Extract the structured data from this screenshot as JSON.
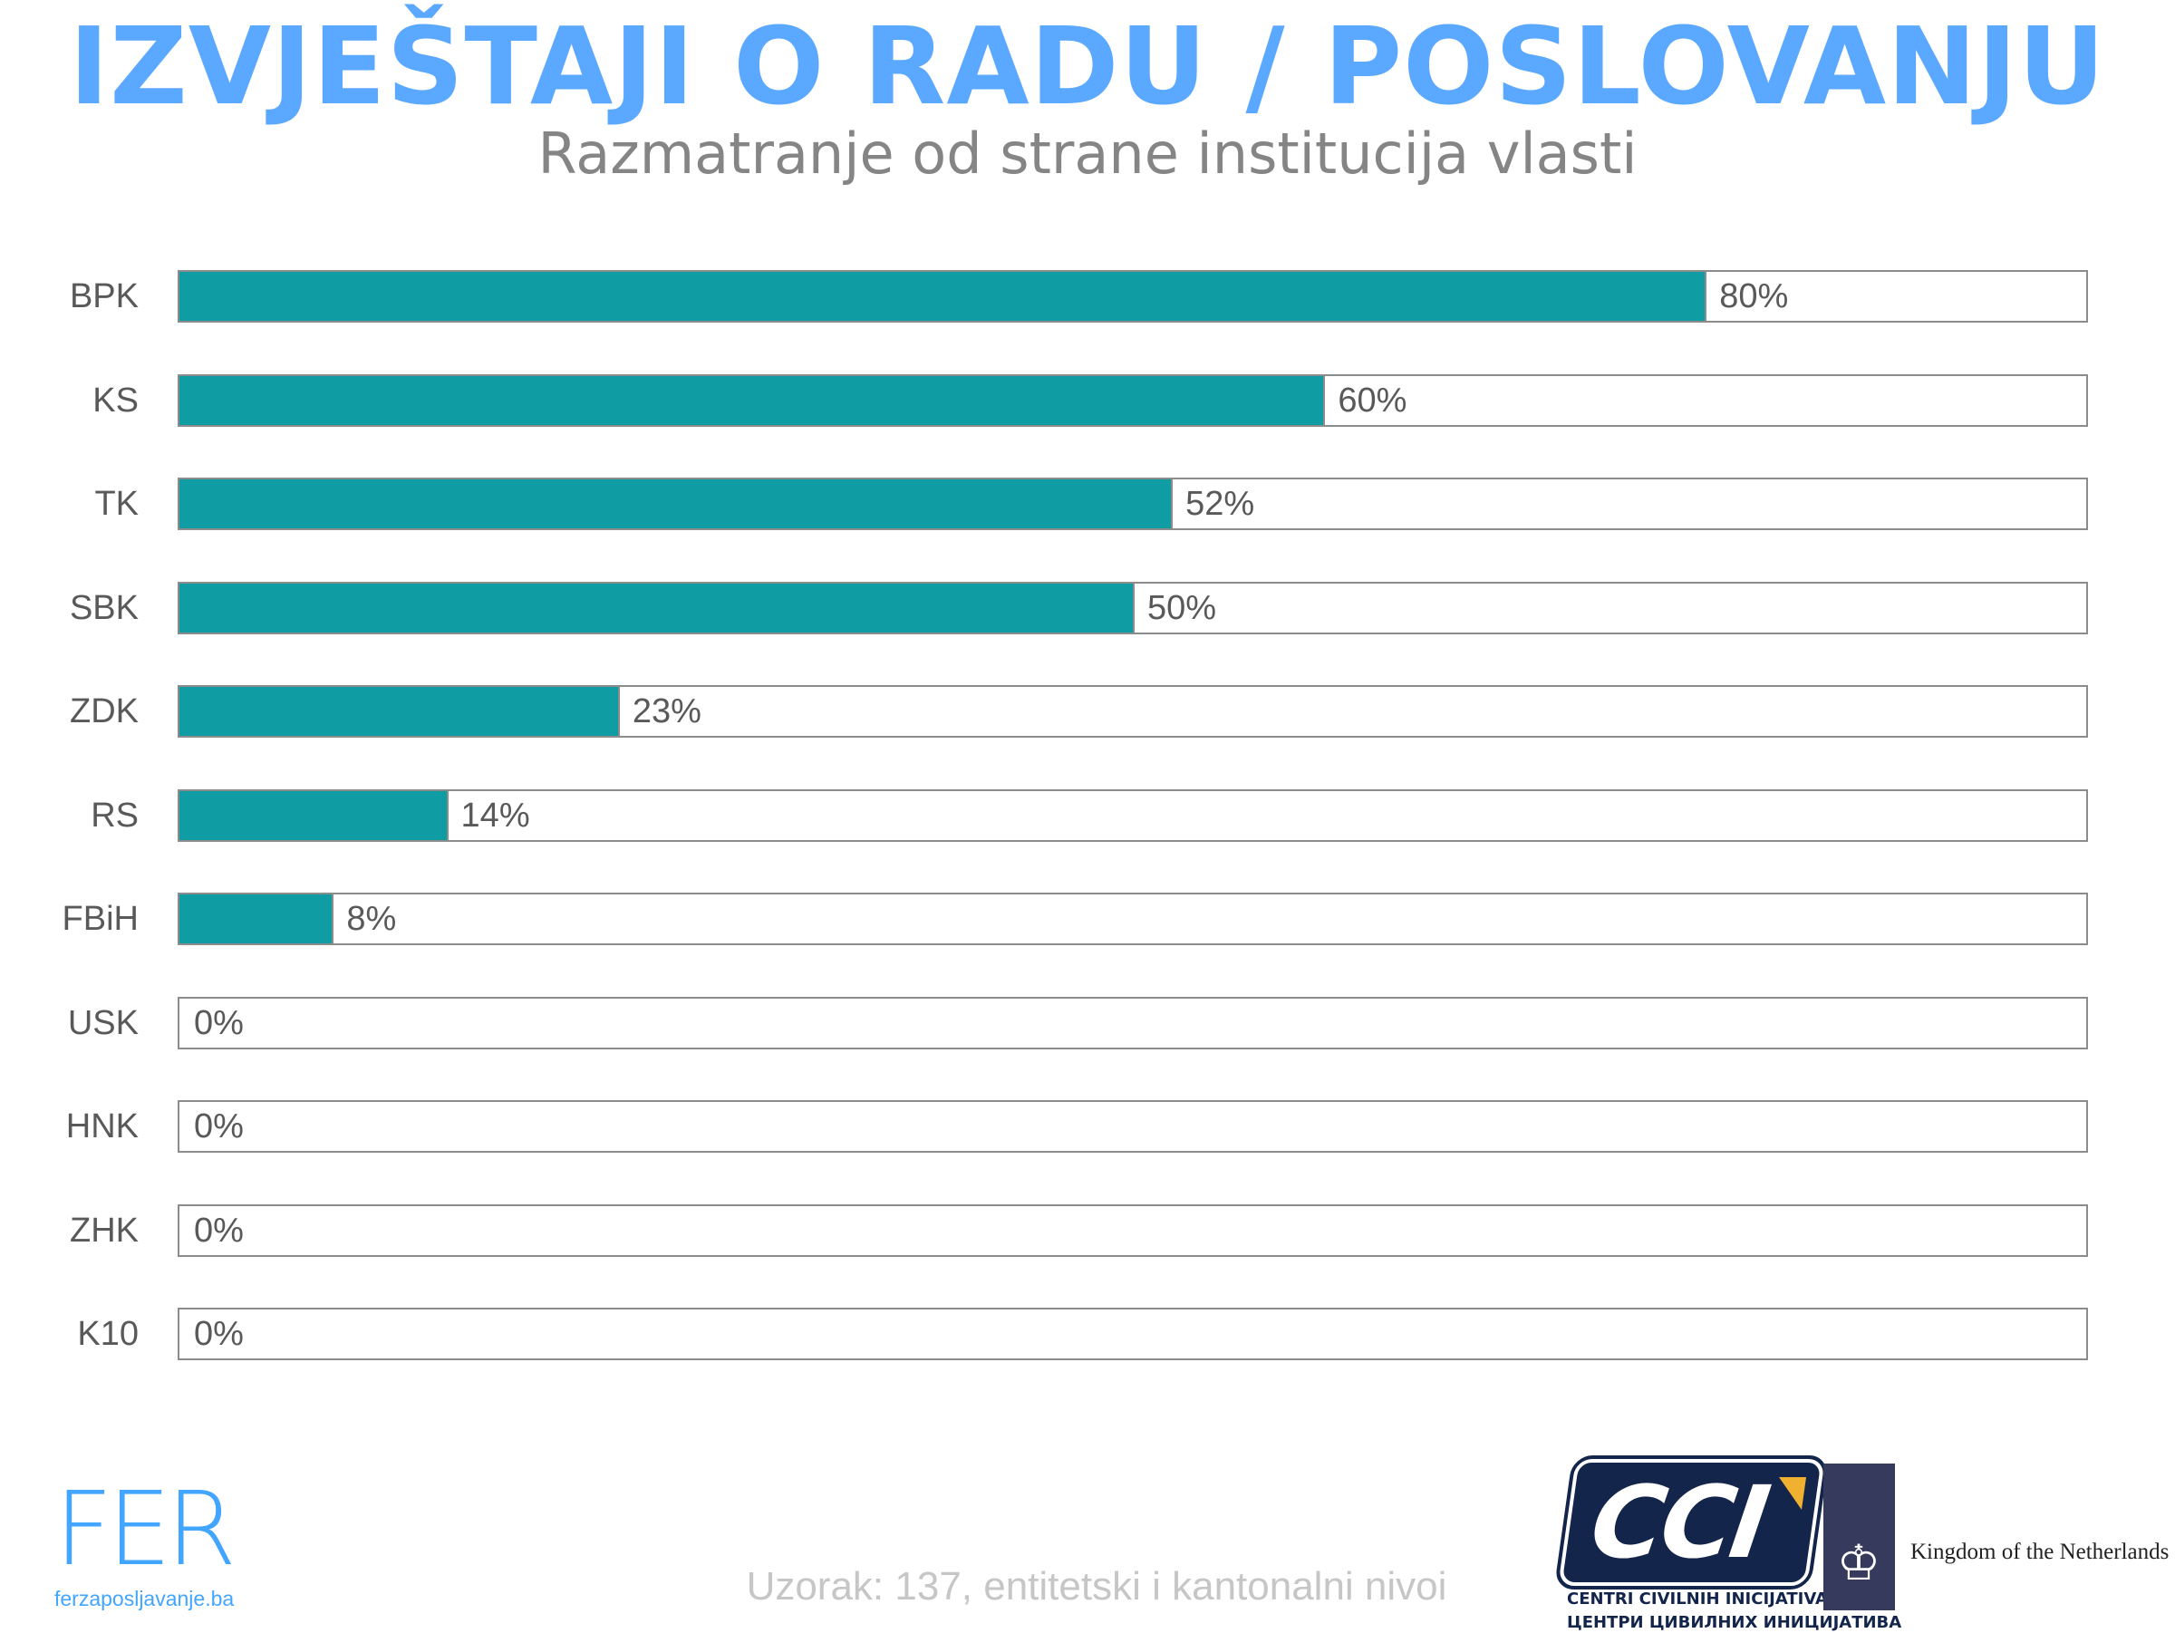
{
  "header": {
    "title": "IZVJEŠTAJI O RADU / POSLOVANJU",
    "subtitle": "Razmatranje od strane institucija vlasti"
  },
  "chart_data": {
    "type": "bar",
    "orientation": "horizontal",
    "title": "IZVJEŠTAJI O RADU / POSLOVANJU",
    "subtitle": "Razmatranje od strane institucija vlasti",
    "categories": [
      "BPK",
      "KS",
      "TK",
      "SBK",
      "ZDK",
      "RS",
      "FBiH",
      "USK",
      "HNK",
      "ZHK",
      "K10"
    ],
    "values": [
      80,
      60,
      52,
      50,
      23,
      14,
      8,
      0,
      0,
      0,
      0
    ],
    "labels": [
      "80%",
      "60%",
      "52%",
      "50%",
      "23%",
      "14%",
      "8%",
      "0%",
      "0%",
      "0%",
      "0%"
    ],
    "xlim": [
      0,
      100
    ],
    "unit": "%",
    "grid": false,
    "colors": {
      "bar": "#0f9ca3",
      "track_border": "#8c8c8c"
    }
  },
  "footer": {
    "fer_logo": "FER",
    "fer_url": "ferzaposljavanje.ba",
    "sample_note": "Uzorak: 137, entitetski i kantonalni nivoi",
    "cci_logo": "CCI",
    "cci_line1": "CENTRI CIVILNIH INICIJATIVA",
    "cci_line2": "ЦЕНТРИ ЦИВИЛНИХ ИНИЦИЈАТИВА",
    "netherlands": "Kingdom of the Netherlands"
  },
  "colors": {
    "title": "#5aa8ff",
    "subtitle": "#858585"
  }
}
